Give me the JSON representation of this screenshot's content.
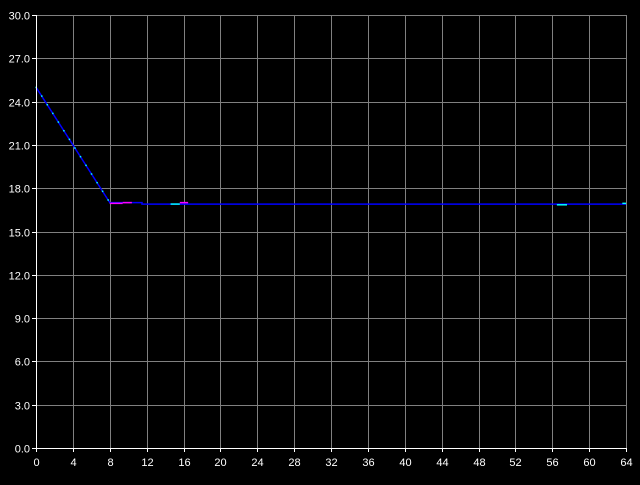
{
  "chart_data": {
    "type": "line",
    "title": "",
    "xlabel": "",
    "ylabel": "",
    "xlim": [
      0,
      64
    ],
    "ylim": [
      0,
      30
    ],
    "grid": true,
    "background": "#000000",
    "grid_color": "#808080",
    "axis_color": "#ffffff",
    "x_ticks": [
      "0",
      "4",
      "8",
      "12",
      "16",
      "20",
      "24",
      "28",
      "32",
      "36",
      "40",
      "44",
      "48",
      "52",
      "56",
      "60",
      "64"
    ],
    "y_ticks": [
      "0.0",
      "3.0",
      "6.0",
      "9.0",
      "12.0",
      "15.0",
      "18.0",
      "21.0",
      "24.0",
      "27.0",
      "30.0"
    ],
    "series": [
      {
        "color": "#0000ff",
        "x": [
          0,
          8,
          11.5,
          11.5,
          64
        ],
        "y": [
          25,
          17,
          17,
          16.9,
          16.9
        ]
      }
    ],
    "overlay_segments": [
      {
        "color": "#ff00ff",
        "x": [
          8.0,
          9.4
        ],
        "y": [
          16.95,
          16.95
        ]
      },
      {
        "color": "#ff00ff",
        "x": [
          9.4,
          10.4
        ],
        "y": [
          17.0,
          17.0
        ]
      },
      {
        "color": "#00ffff",
        "x": [
          14.6,
          15.6
        ],
        "y": [
          16.9,
          16.9
        ]
      },
      {
        "color": "#ff00ff",
        "x": [
          15.6,
          16.5
        ],
        "y": [
          17.0,
          17.0
        ]
      },
      {
        "color": "#00ffff",
        "x": [
          56.5,
          57.6
        ],
        "y": [
          16.85,
          16.85
        ]
      },
      {
        "color": "#00ffff",
        "x": [
          63.6,
          64
        ],
        "y": [
          16.95,
          16.95
        ]
      }
    ]
  }
}
